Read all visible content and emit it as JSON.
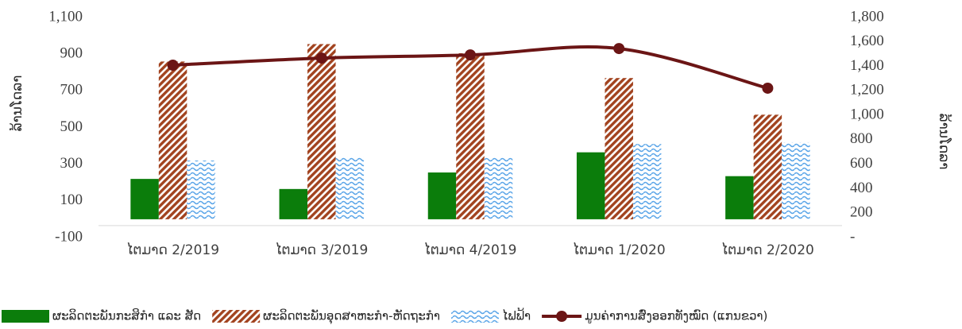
{
  "chart_data": {
    "type": "bar",
    "categories": [
      "ໄຕມາດ 2/2019",
      "ໄຕມາດ 3/2019",
      "ໄຕມາດ 4/2019",
      "ໄຕມາດ 1/2020",
      "ໄຕມາດ 2/2020"
    ],
    "ylabel": "ລ້ານໂດລາ",
    "y2label": "ລ້ານໂດລາ",
    "ylim": [
      -100,
      1100
    ],
    "yticks": [
      -100,
      100,
      300,
      500,
      700,
      900,
      {
        "value": 1100,
        "label": "1,100"
      }
    ],
    "y2lim": [
      0,
      1800
    ],
    "y2ticks": [
      {
        "value": 0,
        "label": "-"
      },
      200,
      400,
      600,
      800,
      {
        "value": 1000,
        "label": "1,000"
      },
      {
        "value": 1200,
        "label": "1,200"
      },
      {
        "value": 1400,
        "label": "1,400"
      },
      {
        "value": 1600,
        "label": "1,600"
      },
      {
        "value": 1800,
        "label": "1,800"
      }
    ],
    "legend": "bottom",
    "series": [
      {
        "name": "ຜະລິດຕະພັນກະສິກຳ ແລະ ສັດ",
        "color": "#0b7d0b",
        "pattern": "solid",
        "values": [
          220,
          165,
          255,
          365,
          235
        ]
      },
      {
        "name": "ຜະລິດຕະພັນອຸດສາຫະກຳ-ຫັດຖະກຳ",
        "color": "#a2431f",
        "pattern": "diagonal",
        "values": [
          860,
          955,
          905,
          770,
          570
        ]
      },
      {
        "name": "ໄຟຟ້າ",
        "color": "#5aa5e8",
        "pattern": "wave",
        "values": [
          320,
          340,
          335,
          410,
          420
        ]
      },
      {
        "name": "ມູນຄ່າການສົ່ງອອກທັງໝົດ (ແກນຂວາ)",
        "color": "#6b1515",
        "type": "line",
        "axis": "y2",
        "values": [
          1410,
          1468,
          1494,
          1546,
          1222
        ]
      }
    ]
  }
}
